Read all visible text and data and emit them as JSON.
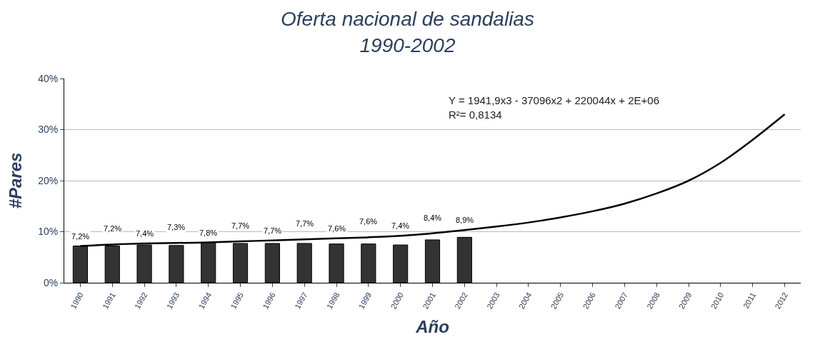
{
  "chart_data": {
    "type": "bar",
    "title": "Oferta nacional de sandalias\n1990-2002",
    "xlabel": "Año",
    "ylabel": "#Pares",
    "categories": [
      "1990",
      "1991",
      "1992",
      "1993",
      "1994",
      "1995",
      "1996",
      "1997",
      "1998",
      "1999",
      "2000",
      "2001",
      "2002",
      "2003",
      "2004",
      "2005",
      "2006",
      "2007",
      "2008",
      "2009",
      "2010",
      "2011",
      "2012"
    ],
    "series": [
      {
        "color": "#333333",
        "values": [
          7.2,
          7.2,
          7.4,
          7.3,
          7.8,
          7.7,
          7.7,
          7.7,
          7.6,
          7.6,
          7.4,
          8.4,
          8.9,
          null,
          null,
          null,
          null,
          null,
          null,
          null,
          null,
          null,
          null
        ],
        "value_labels": [
          "7,2%",
          "7,2%",
          "7,4%",
          "7,3%",
          "7,8%",
          "7,7%",
          "7,7%",
          "7,7%",
          "7,6%",
          "7,6%",
          "7,4%",
          "8,4%",
          "8,9%",
          null,
          null,
          null,
          null,
          null,
          null,
          null,
          null,
          null,
          null
        ]
      },
      {
        "type": "line",
        "color": "#000000",
        "values": [
          7.2,
          7.5,
          7.7,
          7.8,
          7.9,
          8.1,
          8.3,
          8.5,
          8.7,
          8.9,
          9.2,
          9.7,
          10.3,
          11,
          11.8,
          12.8,
          14,
          15.5,
          17.5,
          20,
          23.5,
          28,
          33
        ]
      }
    ],
    "ylim": [
      0,
      40
    ],
    "yticks": [
      {
        "value": 0,
        "label": "0%"
      },
      {
        "value": 10,
        "label": "10%"
      },
      {
        "value": 20,
        "label": "20%"
      },
      {
        "value": 30,
        "label": "30%"
      },
      {
        "value": 40,
        "label": "40%"
      }
    ],
    "grid": "y",
    "annotations": [
      "Y = 1941,9x3 - 37096x2 + 220044x + 2E+06\nR²= 0,8134"
    ]
  }
}
